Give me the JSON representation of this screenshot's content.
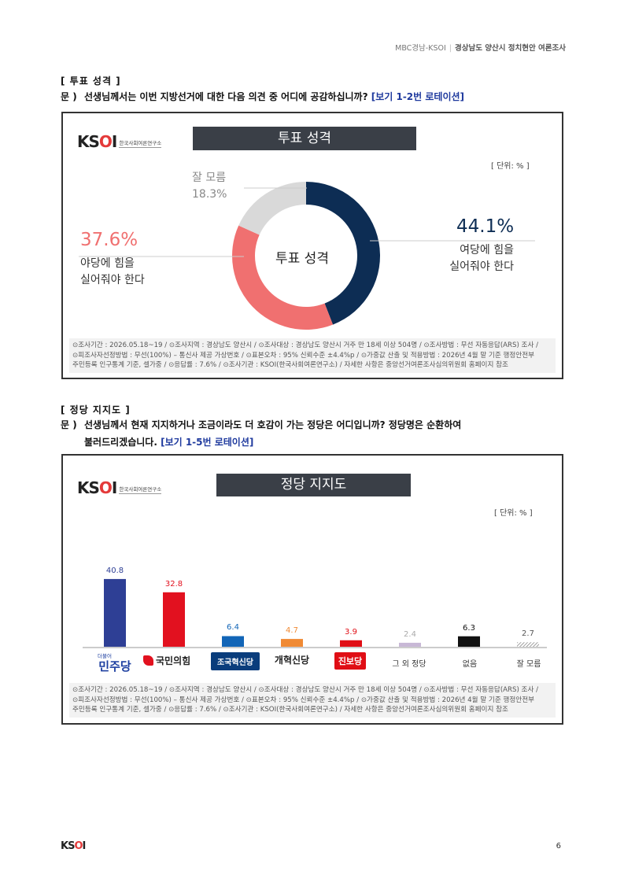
{
  "header": {
    "left": "MBC경남-KSOI",
    "right": "경상남도 양산시 정치현안 여론조사"
  },
  "section1": {
    "title": "[ 투표 성격 ]",
    "q_prefix": "문 )",
    "question": "선생님께서는 이번 지방선거에 대한 다음 의견 중 어디에 공감하십니까?",
    "rotation": "[보기 1-2번 로테이션]"
  },
  "chart1_panel": {
    "logo_text": "한국사회여론연구소",
    "title": "투표 성격",
    "unit": "[ 단위: % ]",
    "center_label": "투표 성격",
    "ruling_pct": "44.1%",
    "ruling_l1": "여당에 힘을",
    "ruling_l2": "실어줘야 한다",
    "opp_pct": "37.6%",
    "opp_l1": "야당에 힘을",
    "opp_l2": "실어줘야 한다",
    "dk_l1": "잘 모름",
    "dk_pct": "18.3%",
    "colors": {
      "ruling": "#0d2d54",
      "opposition": "#f07070",
      "dontknow": "#d9d9d9"
    }
  },
  "chart_data": [
    {
      "type": "pie",
      "title": "투표 성격",
      "categories": [
        "여당에 힘을 실어줘야 한다",
        "야당에 힘을 실어줘야 한다",
        "잘 모름"
      ],
      "values": [
        44.1,
        37.6,
        18.3
      ]
    },
    {
      "type": "bar",
      "title": "정당 지지도",
      "categories": [
        "더불어민주당",
        "국민의힘",
        "조국혁신당",
        "개혁신당",
        "진보당",
        "그 외 정당",
        "없음",
        "잘 모름"
      ],
      "values": [
        40.8,
        32.8,
        6.4,
        4.7,
        3.9,
        2.4,
        6.3,
        2.7
      ],
      "colors": [
        "#2e3f95",
        "#e2111f",
        "#1265b7",
        "#f08a34",
        "#e00e15",
        "#c8b8d6",
        "#111111",
        "#bbbbbb"
      ]
    }
  ],
  "section2": {
    "title": "[ 정당 지지도 ]",
    "q_prefix": "문 )",
    "question_l1": "선생님께서 현재 지지하거나 조금이라도 더 호감이 가는 정당은 어디입니까? 정당명은 순환하여",
    "question_l2": "불러드리겠습니다.",
    "rotation": "[보기 1-5번 로테이션]"
  },
  "chart2_panel": {
    "logo_text": "한국사회여론연구소",
    "title": "정당 지지도",
    "unit": "[ 단위: % ]",
    "value_labels": [
      "40.8",
      "32.8",
      "6.4",
      "4.7",
      "3.9",
      "2.4",
      "6.3",
      "2.7"
    ],
    "party_labels": {
      "dem_small": "더불어",
      "dem": "민주당",
      "ppp": "국민의힘",
      "rebuild": "조국혁신당",
      "reform": "개혁신당",
      "prog": "진보당",
      "other": "그 외 정당",
      "none": "없음",
      "dk": "잘 모름"
    }
  },
  "footnote": {
    "l1": "⊙조사기간 : 2026.05.18~19 / ⊙조사지역 : 경상남도 양산시 / ⊙조사대상 : 경상남도 양산시 거주 만 18세 이상 504명 / ⊙조사방법 : 무선 자동응답(ARS) 조사 /",
    "l2": "⊙피조사자선정방법 : 무선(100%) – 통신사 제공 가상번호 / ⊙표본오차 : 95% 신뢰수준 ±4.4%p / ⊙가중값 산출 및 적용방법 : 2026년 4월 말 기준 행정안전부",
    "l3": "주민등록 인구통계 기준, 셀가중 / ⊙응답률 : 7.6% / ⊙조사기관 : KSOI(한국사회여론연구소) / 자세한 사항은 중앙선거여론조사심의위원회 홈페이지 참조"
  },
  "page": {
    "number": "6"
  }
}
